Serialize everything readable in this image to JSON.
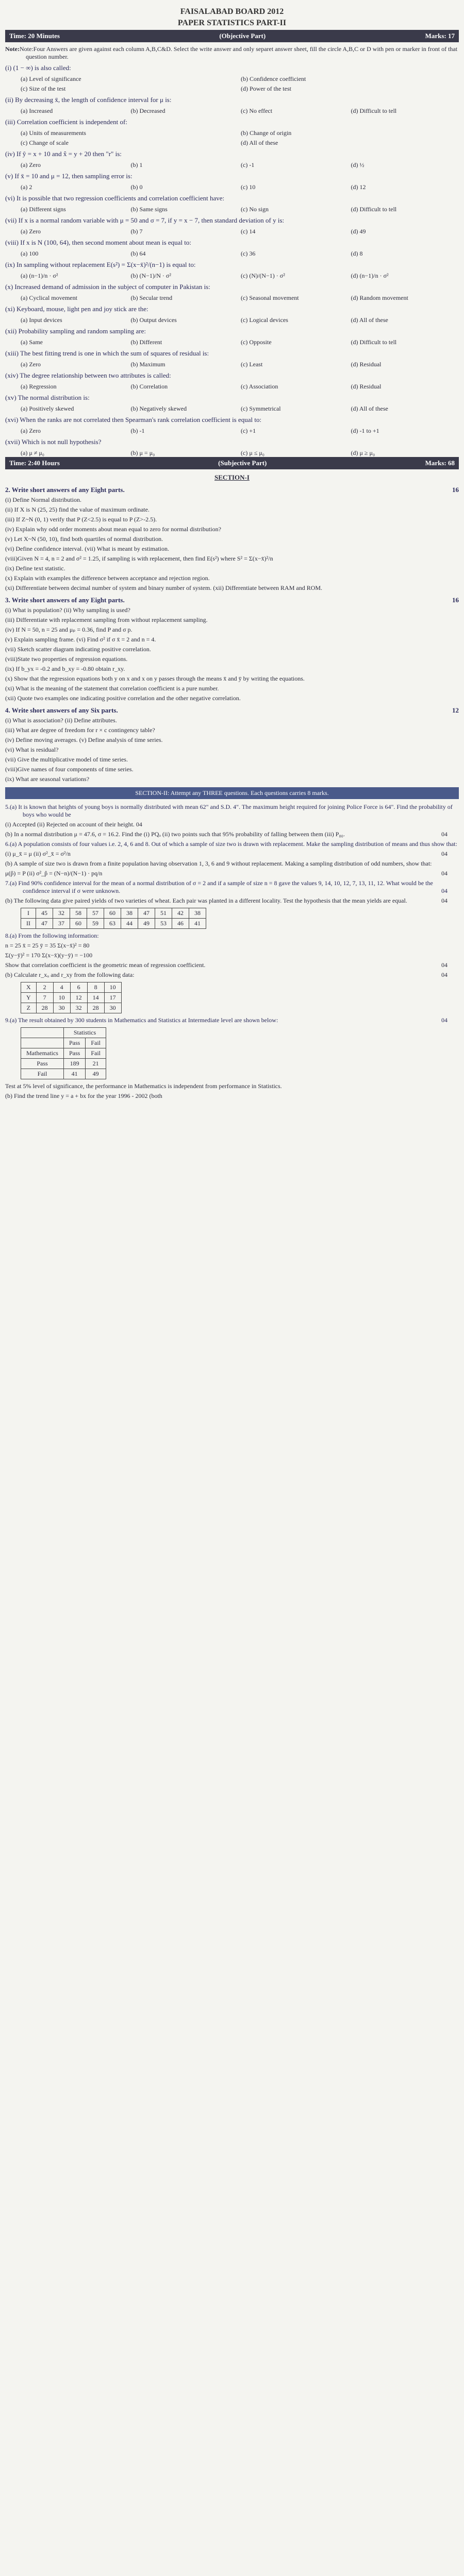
{
  "header": {
    "board": "FAISALABAD BOARD 2012",
    "title": "PAPER STATISTICS PART-II"
  },
  "objBar": {
    "time": "Time: 20 Minutes",
    "part": "(Objective Part)",
    "marks": "Marks: 17"
  },
  "note": "Note:Four Answers are given against each column A,B,C&D. Select the write answer and only separet answer sheet, fill the circle A,B,C or D with pen or marker in front of that question number.",
  "q": [
    {
      "n": "(i)",
      "t": "(1 − ∞) is also called:",
      "o": [
        "(a) Level of significance",
        "(b) Confidence coefficient",
        "(c) Size of the test",
        "(d) Power of the test"
      ]
    },
    {
      "n": "(ii)",
      "t": "By decreasing x̄, the length of confidence interval for μ is:",
      "o": [
        "(a) Increased",
        "(b) Decreased",
        "(c) No effect",
        "(d) Difficult to tell"
      ]
    },
    {
      "n": "(iii)",
      "t": "Correlation coefficient is independent of:",
      "o": [
        "(a) Units of measurements",
        "(b) Change of origin",
        "(c) Change of scale",
        "(d) All of these"
      ]
    },
    {
      "n": "(iv)",
      "t": "If ŷ = x + 10 and x̂ = y + 20 then \"r\" is:",
      "o": [
        "(a) Zero",
        "(b) 1",
        "(c) -1",
        "(d) ½"
      ]
    },
    {
      "n": "(v)",
      "t": "If x̄ = 10 and μ = 12, then sampling error is:",
      "o": [
        "(a) 2",
        "(b) 0",
        "(c) 10",
        "(d) 12"
      ]
    },
    {
      "n": "(vi)",
      "t": "It is possible that two regression coefficients and correlation coefficient have:",
      "o": [
        "(a) Different signs",
        "(b) Same signs",
        "(c) No sign",
        "(d) Difficult to tell"
      ]
    },
    {
      "n": "(vii)",
      "t": "If x is a normal random variable with μ = 50 and σ = 7, if y = x − 7, then standard deviation of y is:",
      "o": [
        "(a) Zero",
        "(b) 7",
        "(c) 14",
        "(d) 49"
      ]
    },
    {
      "n": "(viii)",
      "t": "If x is N (100, 64), then second moment about mean is equal to:",
      "o": [
        "(a) 100",
        "(b) 64",
        "(c) 36",
        "(d) 8"
      ]
    },
    {
      "n": "(ix)",
      "t": "In sampling without replacement E(s²) = Σ(x−x̄)²/(n−1) is equal to:",
      "o": [
        "(a) (n−1)/n · σ²",
        "(b) (N−1)/N · σ²",
        "(c) (N)/(N−1) · σ²",
        "(d) (n−1)/n · σ²"
      ]
    },
    {
      "n": "(x)",
      "t": "Increased demand of admission in the subject of computer in Pakistan is:",
      "o": [
        "(a) Cyclical movement",
        "(b) Secular trend",
        "(c) Seasonal movement",
        "(d) Random movement"
      ]
    },
    {
      "n": "(xi)",
      "t": "Keyboard, mouse, light pen and joy stick are the:",
      "o": [
        "(a) Input devices",
        "(b) Output devices",
        "(c) Logical devices",
        "(d) All of these"
      ]
    },
    {
      "n": "(xii)",
      "t": "Probability sampling and random sampling are:",
      "o": [
        "(a) Same",
        "(b) Different",
        "(c) Opposite",
        "(d) Difficult to tell"
      ]
    },
    {
      "n": "(xiii)",
      "t": "The best fitting trend is one in which the sum of squares of residual is:",
      "o": [
        "(a) Zero",
        "(b) Maximum",
        "(c) Least",
        "(d) Residual"
      ]
    },
    {
      "n": "(xiv)",
      "t": "The degree relationship between two attributes is called:",
      "o": [
        "(a) Regression",
        "(b) Correlation",
        "(c) Association",
        "(d) Residual"
      ]
    },
    {
      "n": "(xv)",
      "t": "The normal distribution is:",
      "o": [
        "(a) Positively skewed",
        "(b) Negatively skewed",
        "(c) Symmetrical",
        "(d) All of these"
      ]
    },
    {
      "n": "(xvi)",
      "t": "When the ranks are not correlated then Spearman's rank correlation coefficient is equal to:",
      "o": [
        "(a) Zero",
        "(b) -1",
        "(c) +1",
        "(d) -1 to +1"
      ]
    },
    {
      "n": "(xvii)",
      "t": "Which is not null hypothesis?",
      "o": [
        "(a) μ ≠ μ₀",
        "(b) μ = μ₀",
        "(c) μ ≤ μ₀",
        "(d) μ ≥ μ₀"
      ]
    }
  ],
  "subBar": {
    "time": "Time: 2:40 Hours",
    "part": "(Subjective Part)",
    "marks": "Marks: 68"
  },
  "sec1": "SECTION-I",
  "s2h": "2. Write short answers of any Eight parts.",
  "s2m": "16",
  "s2": [
    "(i) Define Normal distribution.",
    "(ii) If X is N (25, 25) find the value of maximum ordinate.",
    "(iii) If Z~N (0, 1) verify that P (Z<2.5) is equal to P (Z>-2.5).",
    "(iv) Explain why odd order moments about mean equal to zero for normal distribution?",
    "(v) Let X~N (50, 10), find both quartiles of normal distribution.",
    "(vi) Define confidence interval. (vii) What is meant by estimation.",
    "(viii)Given N = 4, n = 2 and σ² = 1.25, if sampling is with replacement, then find E(s²) where S² = Σ(x−x̄)²/n",
    "(ix) Define text statistic.",
    "(x) Explain with examples the difference between acceptance and rejection region.",
    "(xi) Differentiate between decimal number of system and binary number of system. (xii) Differentiate between RAM and ROM."
  ],
  "s3h": "3. Write short answers of any Eight parts.",
  "s3m": "16",
  "s3": [
    "(i) What is population? (ii) Why sampling is used?",
    "(iii) Differentiate with replacement sampling from without replacement sampling.",
    "(iv) If N = 50, n = 25 and μₚ = 0.36, find P and σ p.",
    "(v) Explain sampling frame. (vi) Find σ² if σ x̄ = 2 and n = 4.",
    "(vii) Sketch scatter diagram indicating positive correlation.",
    "(viii)State two properties of regression equations.",
    "(ix) If b_yx = -0.2 and b_xy = -0.80 obtain r_xy.",
    "(x) Show that the regression equations both y on x and x on y passes through the means x̄ and ȳ by writing the equations.",
    "(xi) What is the meaning of the statement that correlation coefficient is a pure number.",
    "(xii) Quote two examples one indicating positive correlation and the other negative correlation."
  ],
  "s4h": "4. Write short answers of any Six parts.",
  "s4m": "12",
  "s4": [
    "(i) What is association? (ii) Define attributes.",
    "(iii) What are degree of freedom for r × c contingency table?",
    "(iv) Define moving averages. (v) Define analysis of time series.",
    "(vi) What is residual?",
    "(vii) Give the multiplicative model of time series.",
    "(viii)Give names of four components of time series.",
    "(ix) What are seasonal variations?"
  ],
  "sec2bar": "SECTION-II: Attempt any THREE questions. Each questions carries 8 marks.",
  "q5a": "5.(a) It is known that heights of young boys is normally distributed with mean 62\" and S.D. 4\". The maximum height required for joining Police Force is 64\". Find the probability of boys who would be",
  "q5a1": "(i) Accepted (ii) Rejected on account of their height. 04",
  "q5b": "(b) In a normal distribution μ = 47.6, σ = 16.2. Find the (i) PQₒ (ii) two points such that 95% probability of falling between them (iii) P₈₀.",
  "q5bm": "04",
  "q6a": "6.(a) A population consists of four values i.e. 2, 4, 6 and 8. Out of which a sample of size two is drawn with replacement. Make the sampling distribution of means and thus show that:",
  "q6a1": "(i) μ_x̄ = μ (ii) σ²_x̄ = σ²/n",
  "q6am": "04",
  "q6b": "(b) A sample of size two is drawn from a finite population having observation 1, 3, 6 and 9 without replacement. Making a sampling distribution of odd numbers, show that:",
  "q6b1": "μ(p̂) = P (ii) σ²_p̂ = (N−n)/(N−1) · pq/n",
  "q6bm": "04",
  "q7a": "7.(a) Find 90% confidence interval for the mean of a normal distribution of σ = 2 and if a sample of size n = 8 gave the values 9, 14, 10, 12, 7, 13, 11, 12. What would be the confidence interval if σ were unknown.",
  "q7am": "04",
  "q7b": "(b) The following data give paired yields of two varieties of wheat. Each pair was planted in a different locality. Test the hypothesis that the mean yields are equal.",
  "q7bm": "04",
  "t7": {
    "h": [
      "I",
      "II"
    ],
    "r1": [
      "45",
      "32",
      "58",
      "57",
      "60",
      "38",
      "47",
      "51",
      "42",
      "38"
    ],
    "r2": [
      "47",
      "37",
      "60",
      "59",
      "63",
      "44",
      "49",
      "53",
      "46",
      "41"
    ]
  },
  "q8a": "8.(a) From the following information:",
  "q8a1": "n = 25 x̄ = 25 ȳ = 35 Σ(x−x̄)² = 80",
  "q8a2": "Σ(y−ȳ)² = 170 Σ(x−x̄)(y−ȳ) = −100",
  "q8a3": "Show that correlation coefficient is the geometric mean of regression coefficient.",
  "q8am": "04",
  "q8b": "(b) Calculate r_xᵤ and r_xy from the following data:",
  "q8bm": "04",
  "t8": {
    "h": [
      "X",
      "Y",
      "Z"
    ],
    "r1": [
      "2",
      "4",
      "6",
      "8",
      "10"
    ],
    "r2": [
      "7",
      "10",
      "12",
      "14",
      "17"
    ],
    "r3": [
      "28",
      "30",
      "32",
      "28",
      "30"
    ]
  },
  "q9a": "9.(a) The result obtained by 300 students in Mathematics and Statistics at Intermediate level are shown below:",
  "q9am": "04",
  "t9": {
    "title": "Statistics",
    "h": [
      "",
      "Pass",
      "Fail"
    ],
    "r": [
      [
        "Mathematics",
        "Pass",
        "Fail"
      ],
      [
        "Pass",
        "189",
        "21"
      ],
      [
        "Fail",
        "41",
        "49"
      ]
    ]
  },
  "q9a1": "Test at 5% level of significance, the performance in Mathematics is independent from performance in Statistics.",
  "q9b": "(b) Find the trend line y = a + bx for the year 1996 - 2002 (both"
}
